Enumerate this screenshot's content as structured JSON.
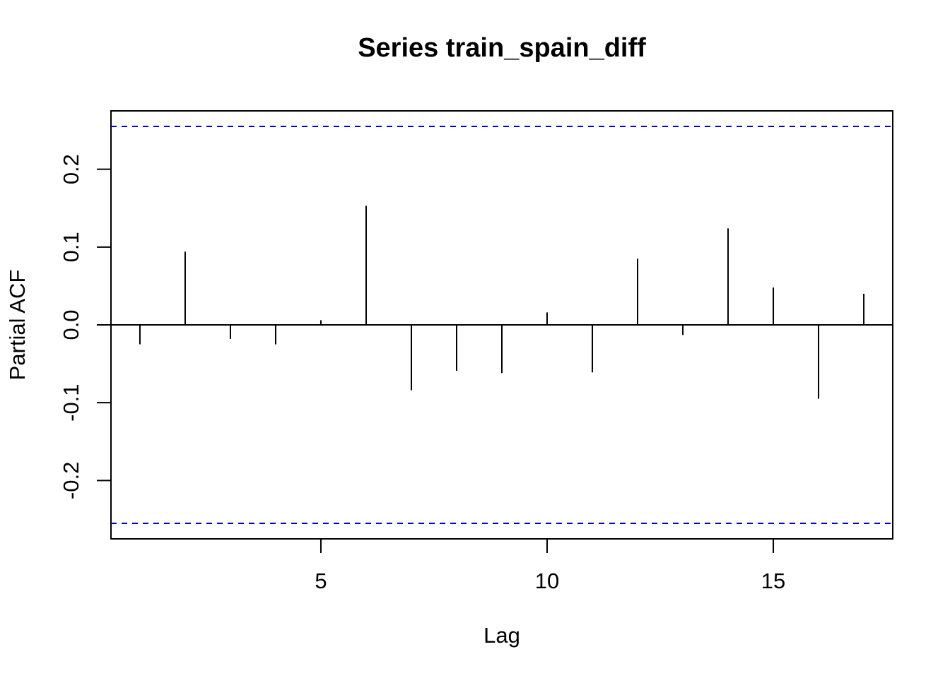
{
  "chart_data": {
    "type": "bar",
    "title": "Series  train_spain_diff",
    "xlabel": "Lag",
    "ylabel": "Partial ACF",
    "xlim": [
      0.36,
      17.64
    ],
    "ylim": [
      -0.275,
      0.275
    ],
    "x_ticks": [
      5,
      10,
      15
    ],
    "x_tick_labels": [
      "5",
      "10",
      "15"
    ],
    "y_ticks": [
      -0.2,
      -0.1,
      0.0,
      0.1,
      0.2
    ],
    "y_tick_labels": [
      "-0.2",
      "-0.1",
      "0.0",
      "0.1",
      "0.2"
    ],
    "lags": [
      1,
      2,
      3,
      4,
      5,
      6,
      7,
      8,
      9,
      10,
      11,
      12,
      13,
      14,
      15,
      16,
      17
    ],
    "values": [
      -0.025,
      0.094,
      -0.018,
      -0.025,
      0.006,
      0.153,
      -0.084,
      -0.059,
      -0.062,
      0.016,
      -0.061,
      0.085,
      -0.013,
      0.124,
      0.048,
      -0.095,
      0.04
    ],
    "confidence_limits": [
      0.255,
      -0.255
    ],
    "confidence_color": "#0000cc",
    "grid": false
  }
}
